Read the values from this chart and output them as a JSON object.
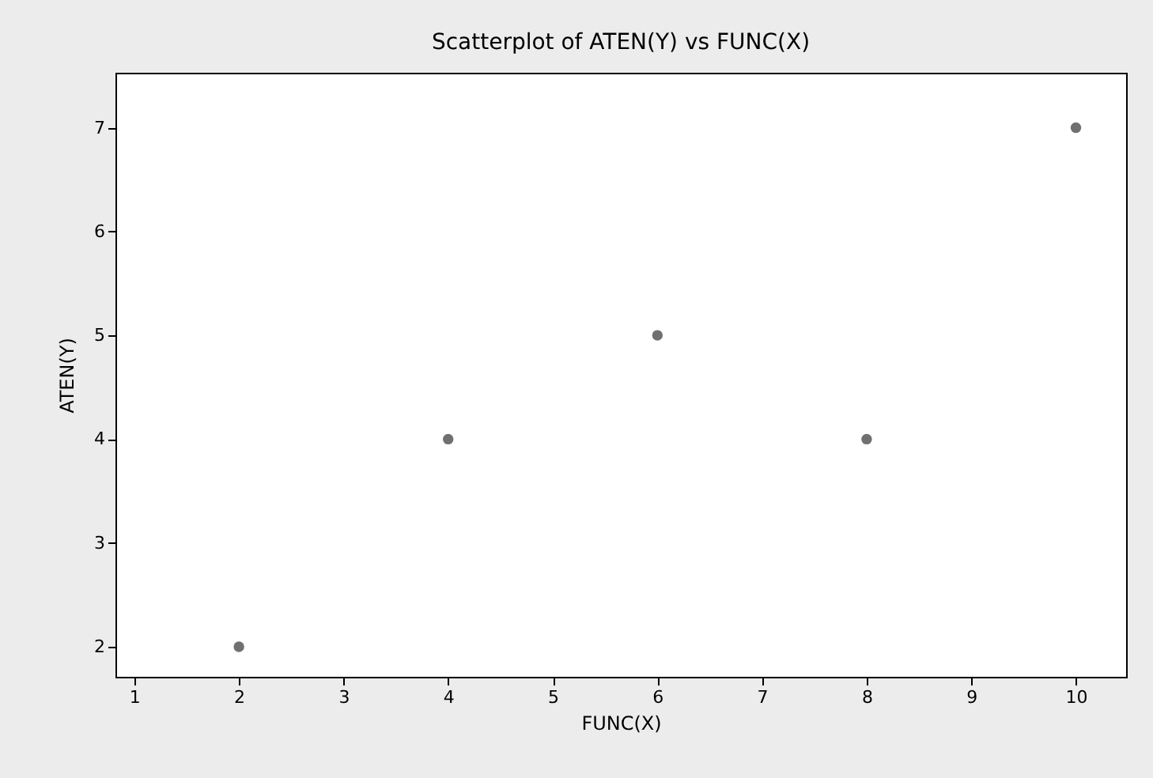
{
  "chart_data": {
    "type": "scatter",
    "title": "Scatterplot of ATEN(Y) vs FUNC(X)",
    "xlabel": "FUNC(X)",
    "ylabel": "ATEN(Y)",
    "x": [
      2,
      4,
      6,
      8,
      10
    ],
    "series": [
      {
        "color": "#707070",
        "values": [
          2,
          4,
          5,
          4,
          7
        ]
      }
    ],
    "xlim": [
      0.82,
      10.48
    ],
    "xticks": [
      1,
      2,
      3,
      4,
      5,
      6,
      7,
      8,
      9,
      10
    ],
    "ylim": [
      1.71,
      7.53
    ],
    "yticks": [
      2,
      3,
      4,
      5,
      6,
      7
    ],
    "marker": "circle"
  }
}
